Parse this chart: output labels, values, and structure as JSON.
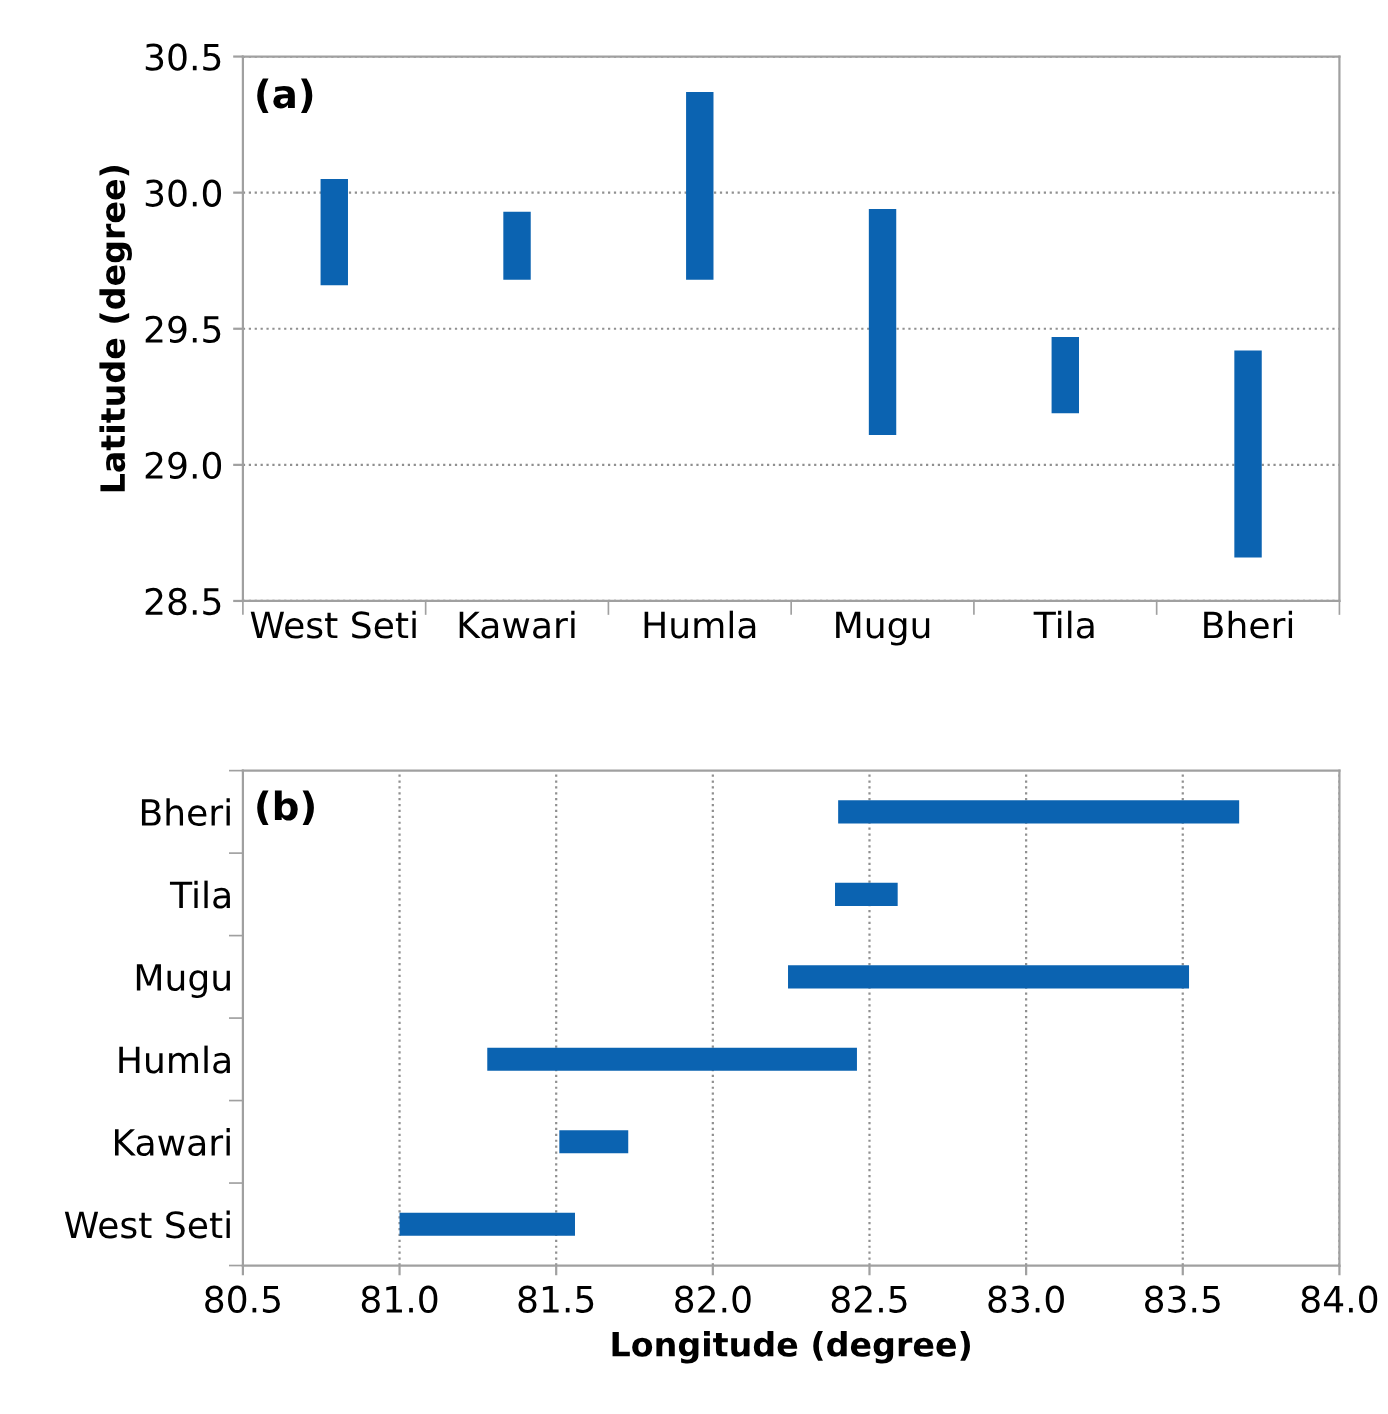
{
  "chart_data": [
    {
      "type": "bar",
      "ylabel": "Latitude (degree)",
      "annotations": [
        "(a)"
      ],
      "categories": [
        "West Seti",
        "Kawari",
        "Humla",
        "Mugu",
        "Tila",
        "Bheri"
      ],
      "series": [
        {
          "color": "#0b63b1",
          "base": [
            29.66,
            29.68,
            29.68,
            29.11,
            29.19,
            28.66
          ],
          "values": [
            0.39,
            0.25,
            0.69,
            0.83,
            0.28,
            0.76
          ]
        }
      ],
      "ylim": [
        28.5,
        30.5
      ],
      "yticks": [
        {
          "value": 28.5,
          "label": "28.5"
        },
        {
          "value": 29.0,
          "label": "29.0"
        },
        {
          "value": 29.5,
          "label": "29.5"
        },
        {
          "value": 30.0,
          "label": "30.0"
        },
        {
          "value": 30.5,
          "label": "30.5"
        }
      ],
      "grid": "y",
      "line_style": "dotted"
    },
    {
      "type": "bar",
      "orientation": "horizontal",
      "xlabel": "Longitude (degree)",
      "annotations": [
        "(b)"
      ],
      "categories": [
        "Bheri",
        "Tila",
        "Mugu",
        "Humla",
        "Kawari",
        "West Seti"
      ],
      "series": [
        {
          "color": "#0b63b1",
          "base": [
            82.4,
            82.39,
            82.24,
            81.28,
            81.51,
            81.0
          ],
          "values": [
            1.28,
            0.2,
            1.28,
            1.18,
            0.22,
            0.56
          ]
        }
      ],
      "xlim": [
        80.5,
        84.0
      ],
      "xticks": [
        {
          "value": 80.5,
          "label": "80.5"
        },
        {
          "value": 81.0,
          "label": "81.0"
        },
        {
          "value": 81.5,
          "label": "81.5"
        },
        {
          "value": 82.0,
          "label": "82.0"
        },
        {
          "value": 82.5,
          "label": "82.5"
        },
        {
          "value": 83.0,
          "label": "83.0"
        },
        {
          "value": 83.5,
          "label": "83.5"
        },
        {
          "value": 84.0,
          "label": "84.0"
        }
      ],
      "grid": "x",
      "line_style": "dotted"
    }
  ]
}
